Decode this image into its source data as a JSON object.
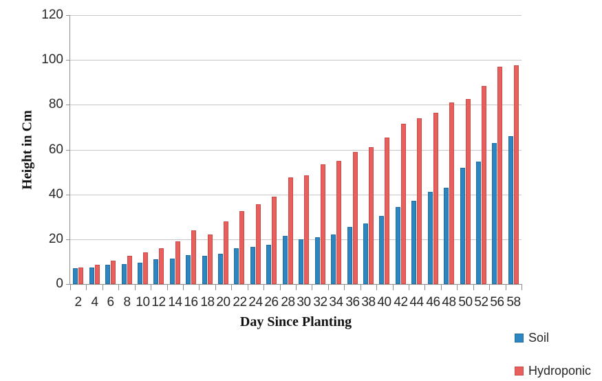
{
  "chart_data": {
    "type": "bar",
    "title": "",
    "xlabel": "Day Since Planting",
    "ylabel": "Height in Cm",
    "categories": [
      2,
      4,
      6,
      8,
      10,
      12,
      14,
      16,
      18,
      20,
      22,
      24,
      26,
      28,
      30,
      32,
      34,
      36,
      38,
      40,
      42,
      44,
      46,
      48,
      50,
      52,
      56,
      58
    ],
    "series": [
      {
        "name": "Soil",
        "color": "#2E86C0",
        "border_color": "#1F6DA0",
        "values": [
          7,
          7.5,
          8.5,
          9,
          9.5,
          11,
          11.5,
          13,
          12.5,
          13.5,
          16,
          16.5,
          17.5,
          21.5,
          20,
          21,
          22,
          25.5,
          27,
          30.5,
          34.5,
          37,
          41,
          43,
          52,
          54.5,
          63,
          66
        ]
      },
      {
        "name": "Hydroponic",
        "color": "#E7605D",
        "border_color": "#CE4844",
        "values": [
          7.5,
          8.5,
          10.5,
          12.5,
          14,
          16,
          19,
          24,
          22,
          28,
          32.5,
          35.5,
          39,
          47.5,
          48.5,
          53.5,
          55,
          59,
          61,
          65.5,
          71.5,
          74,
          76.5,
          81,
          82.5,
          88.5,
          97,
          97.5
        ]
      }
    ],
    "ylim": [
      0,
      120
    ],
    "yticks": [
      0,
      20,
      40,
      60,
      80,
      100,
      120
    ],
    "grid": true,
    "legend_position": "bottom-right",
    "axis_color": "#8E8E8E",
    "gridline_color": "#C6C6C6",
    "tick_label_color": "#262626"
  }
}
